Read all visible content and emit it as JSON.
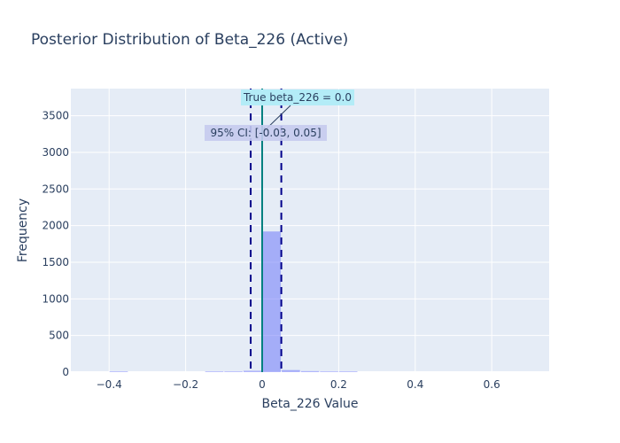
{
  "chart_data": {
    "type": "bar",
    "title": "Posterior Distribution of Beta_226 (Active)",
    "xlabel": "Beta_226 Value",
    "ylabel": "Frequency",
    "xlim": [
      -0.5,
      0.75
    ],
    "ylim": [
      0,
      3870
    ],
    "x_ticks": [
      -0.4,
      -0.2,
      0,
      0.2,
      0.4,
      0.6
    ],
    "x_tick_labels": [
      "−0.4",
      "−0.2",
      "0",
      "0.2",
      "0.4",
      "0.6"
    ],
    "y_ticks": [
      0,
      500,
      1000,
      1500,
      2000,
      2500,
      3000,
      3500
    ],
    "y_tick_labels": [
      "0",
      "500",
      "1000",
      "1500",
      "2000",
      "2500",
      "3000",
      "3500"
    ],
    "grid": true,
    "bin_width": 0.05,
    "bins": [
      {
        "x0": -0.4,
        "x1": -0.35,
        "count": 4
      },
      {
        "x0": -0.15,
        "x1": -0.1,
        "count": 3
      },
      {
        "x0": -0.1,
        "x1": -0.05,
        "count": 8
      },
      {
        "x0": -0.05,
        "x1": 0.0,
        "count": 18
      },
      {
        "x0": 0.0,
        "x1": 0.05,
        "count": 1920
      },
      {
        "x0": 0.05,
        "x1": 0.1,
        "count": 28
      },
      {
        "x0": 0.1,
        "x1": 0.15,
        "count": 14
      },
      {
        "x0": 0.15,
        "x1": 0.2,
        "count": 6
      },
      {
        "x0": 0.2,
        "x1": 0.25,
        "count": 2
      }
    ],
    "true_value": 0.0,
    "ci": [
      -0.03,
      0.05
    ],
    "annotations": {
      "true_label": "True beta_226 = 0.0",
      "ci_label": "95% CI: [-0.03, 0.05]"
    },
    "colors": {
      "bar": "#636efa",
      "true_line": "#008080",
      "ci_line": "#00008b",
      "plot_bg": "#e5ecf6",
      "true_label_bg": "#b3ecf7",
      "ci_label_bg": "#c5cbee"
    }
  }
}
